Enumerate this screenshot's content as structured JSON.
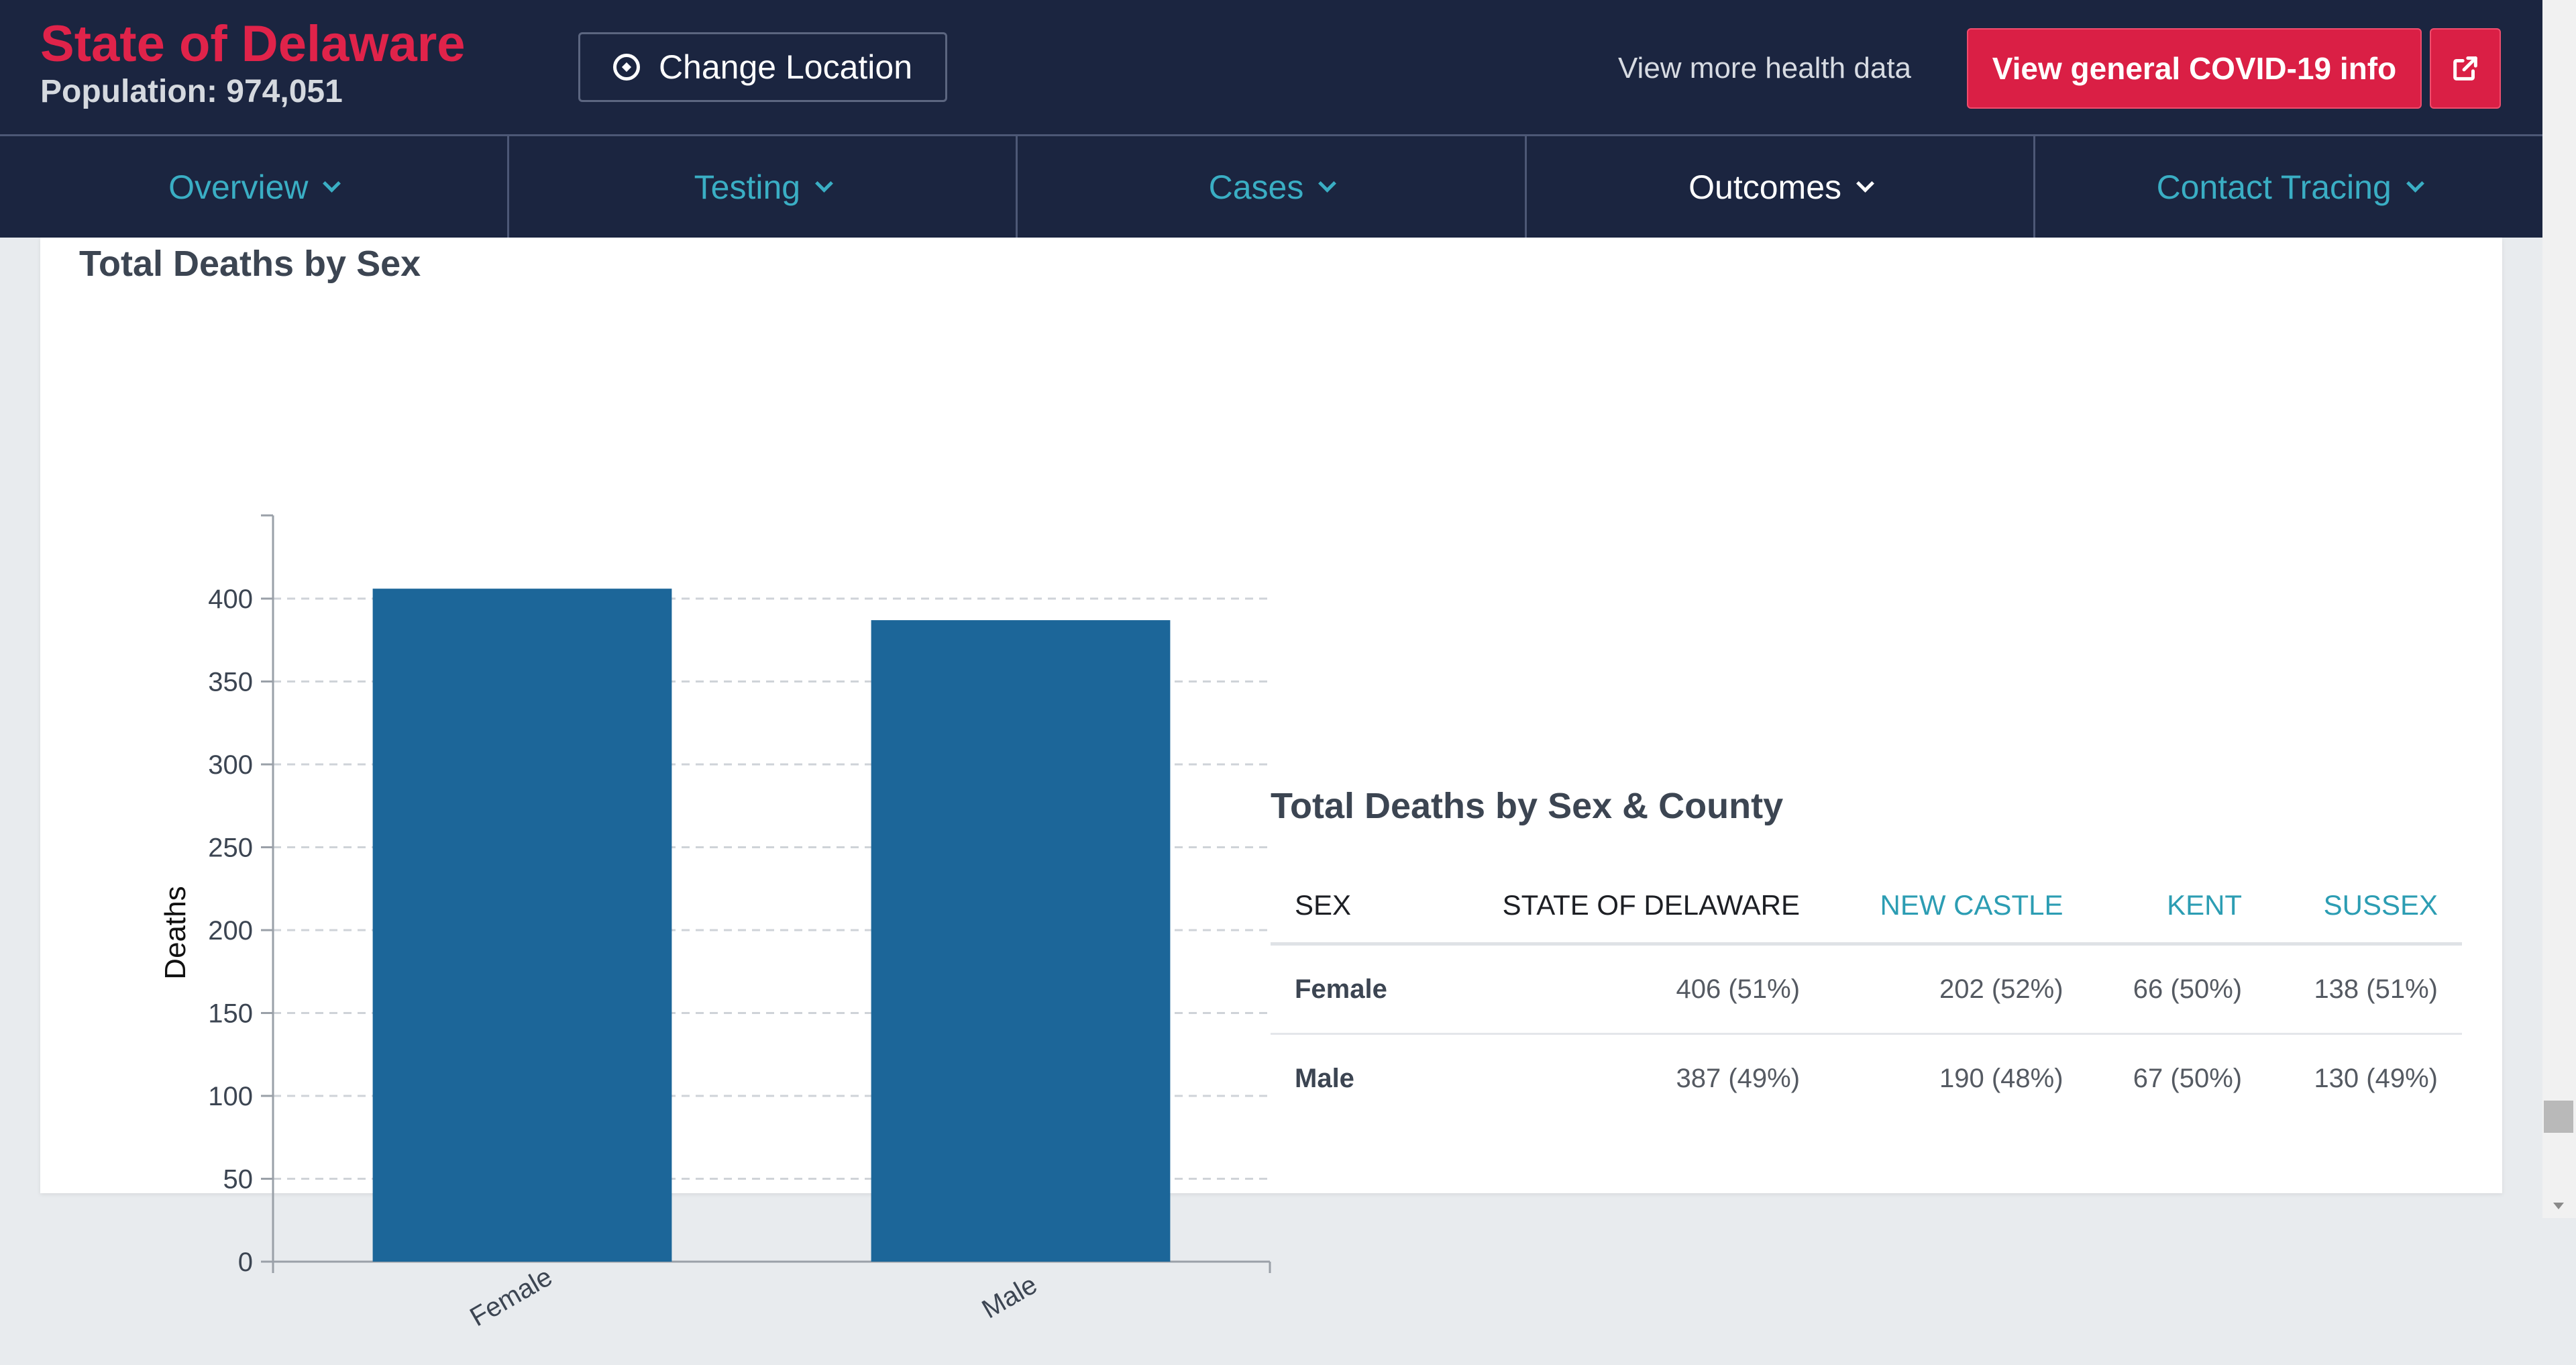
{
  "header": {
    "location_title": "State of Delaware",
    "population": "Population: 974,051",
    "change_location_label": "Change Location",
    "more_data_link": "View more health data",
    "covid_info_label": "View general COVID-19 info"
  },
  "nav": {
    "tabs": [
      {
        "label": "Overview",
        "active": false
      },
      {
        "label": "Testing",
        "active": false
      },
      {
        "label": "Cases",
        "active": false
      },
      {
        "label": "Outcomes",
        "active": true
      },
      {
        "label": "Contact Tracing",
        "active": false
      }
    ]
  },
  "section": {
    "chart_title": "Total Deaths by Sex",
    "table_title": "Total Deaths by Sex & County"
  },
  "chart_data": {
    "type": "bar",
    "categories": [
      "Female",
      "Male"
    ],
    "values": [
      406,
      387
    ],
    "ylabel": "Deaths",
    "xlabel": "",
    "ylim": [
      0,
      400
    ],
    "yticks": [
      0,
      50,
      100,
      150,
      200,
      250,
      300,
      350,
      400
    ],
    "grid": true,
    "bar_color": "#1c6699"
  },
  "table": {
    "headers": [
      "SEX",
      "STATE OF DELAWARE",
      "NEW CASTLE",
      "KENT",
      "SUSSEX"
    ],
    "rows": [
      [
        "Female",
        "406 (51%)",
        "202 (52%)",
        "66 (50%)",
        "138 (51%)"
      ],
      [
        "Male",
        "387 (49%)",
        "190 (48%)",
        "67 (50%)",
        "130 (49%)"
      ]
    ]
  },
  "colors": {
    "brand_red": "#e0234a",
    "nav_bg": "#1b2540",
    "nav_link": "#3aaec4",
    "bar": "#1c6699"
  }
}
